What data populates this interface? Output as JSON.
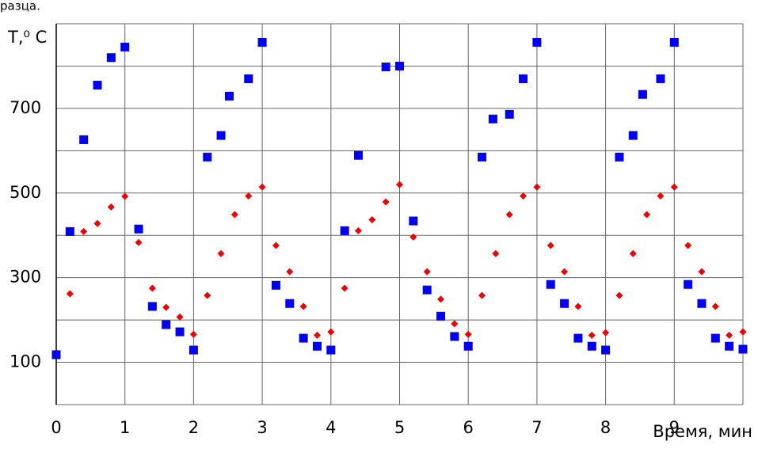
{
  "chart_data": {
    "type": "scatter",
    "caption": "разца.",
    "y_label": "T,⁰ C",
    "x_label": "Время, мин",
    "xlim": [
      0,
      10
    ],
    "xticks": [
      0,
      1,
      2,
      3,
      4,
      5,
      6,
      7,
      8,
      9
    ],
    "ylim": [
      0,
      900
    ],
    "yticks": [
      100,
      300,
      500,
      700
    ],
    "ygrid": [
      0,
      100,
      200,
      300,
      400,
      500,
      600,
      700,
      800,
      900
    ],
    "grid": true,
    "series": [
      {
        "color": "#0000ee",
        "marker": "square",
        "x": [
          0,
          0.2,
          0.4,
          0.6,
          0.8,
          1.0,
          1.2,
          1.4,
          1.6,
          1.8,
          2.0,
          2.2,
          2.4,
          2.52,
          2.8,
          3.0,
          3.2,
          3.4,
          3.6,
          3.8,
          4.0,
          4.2,
          4.4,
          4.8,
          5.0,
          5.2,
          5.4,
          5.6,
          5.8,
          6.0,
          6.2,
          6.36,
          6.6,
          6.8,
          7.0,
          7.2,
          7.4,
          7.6,
          7.8,
          8.0,
          8.2,
          8.4,
          8.54,
          8.8,
          9.0,
          9.2,
          9.4,
          9.6,
          9.8,
          10.0
        ],
        "values": [
          118,
          409,
          626,
          755,
          820,
          845,
          415,
          232,
          189,
          172,
          129,
          585,
          636,
          729,
          770,
          856,
          282,
          239,
          157,
          138,
          129,
          411,
          589,
          798,
          800,
          434,
          271,
          209,
          161,
          138,
          585,
          675,
          686,
          770,
          856,
          284,
          239,
          157,
          138,
          129,
          585,
          636,
          733,
          770,
          856,
          284,
          239,
          157,
          138,
          131
        ]
      },
      {
        "color": "#ee0000",
        "marker": "diamond",
        "x": [
          0.2,
          0.4,
          0.6,
          0.8,
          1.0,
          1.2,
          1.4,
          1.6,
          1.8,
          2.0,
          2.2,
          2.4,
          2.6,
          2.8,
          3.0,
          3.2,
          3.4,
          3.6,
          3.8,
          4.0,
          4.2,
          4.4,
          4.6,
          4.8,
          5.0,
          5.2,
          5.4,
          5.6,
          5.8,
          6.0,
          6.2,
          6.4,
          6.6,
          6.8,
          7.0,
          7.2,
          7.4,
          7.6,
          7.8,
          8.0,
          8.2,
          8.4,
          8.6,
          8.8,
          9.0,
          9.2,
          9.4,
          9.6,
          9.8,
          10.0
        ],
        "values": [
          262,
          409,
          428,
          467,
          492,
          383,
          275,
          230,
          207,
          166,
          258,
          357,
          449,
          493,
          514,
          376,
          314,
          232,
          164,
          172,
          275,
          411,
          437,
          479,
          520,
          396,
          314,
          249,
          191,
          166,
          258,
          357,
          449,
          493,
          514,
          376,
          314,
          232,
          164,
          170,
          258,
          357,
          449,
          493,
          514,
          376,
          314,
          232,
          164,
          172
        ]
      }
    ]
  }
}
